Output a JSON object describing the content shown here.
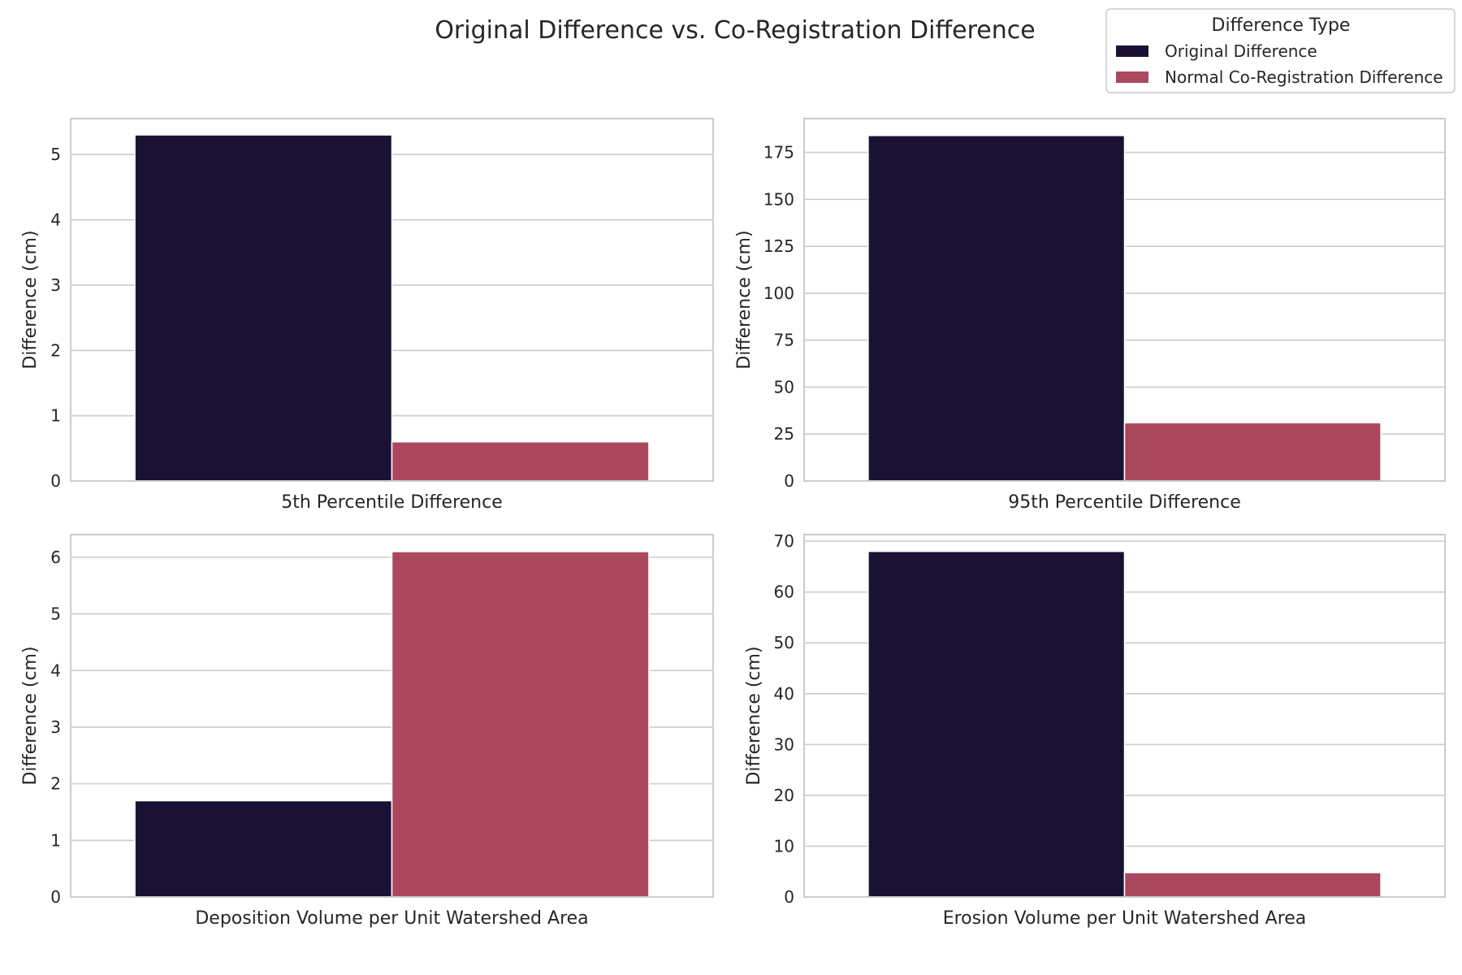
{
  "figure": {
    "title": "Original Difference vs. Co-Registration Difference"
  },
  "legend": {
    "title": "Difference Type",
    "placement": "top-right",
    "entries": [
      {
        "label": "Original Difference",
        "color": "#1a1235"
      },
      {
        "label": "Normal Co-Registration Difference",
        "color": "#ab485e"
      }
    ]
  },
  "colors": {
    "grid": "#cccccc",
    "spine": "#cccccc",
    "text": "#262626",
    "background": "#ffffff"
  },
  "chart_data": [
    {
      "type": "bar",
      "category": "5th Percentile Difference",
      "xlabel": "5th Percentile Difference",
      "ylabel": "Difference (cm)",
      "ylim": [
        0,
        5.55
      ],
      "yticks": [
        0,
        1,
        2,
        3,
        4,
        5
      ],
      "grid": true,
      "series": [
        {
          "name": "Original Difference",
          "values": [
            5.3
          ]
        },
        {
          "name": "Normal Co-Registration Difference",
          "values": [
            0.6
          ]
        }
      ]
    },
    {
      "type": "bar",
      "category": "95th Percentile Difference",
      "xlabel": "95th Percentile Difference",
      "ylabel": "Difference (cm)",
      "ylim": [
        0,
        193
      ],
      "yticks": [
        0,
        25,
        50,
        75,
        100,
        125,
        150,
        175
      ],
      "grid": true,
      "series": [
        {
          "name": "Original Difference",
          "values": [
            184
          ]
        },
        {
          "name": "Normal Co-Registration Difference",
          "values": [
            31
          ]
        }
      ]
    },
    {
      "type": "bar",
      "category": "Deposition Volume per Unit Watershed Area",
      "xlabel": "Deposition Volume per Unit Watershed Area",
      "ylabel": "Difference (cm)",
      "ylim": [
        0,
        6.4
      ],
      "yticks": [
        0,
        1,
        2,
        3,
        4,
        5,
        6
      ],
      "grid": true,
      "series": [
        {
          "name": "Original Difference",
          "values": [
            1.7
          ]
        },
        {
          "name": "Normal Co-Registration Difference",
          "values": [
            6.1
          ]
        }
      ]
    },
    {
      "type": "bar",
      "category": "Erosion Volume per Unit Watershed Area",
      "xlabel": "Erosion Volume per Unit Watershed Area",
      "ylabel": "Difference (cm)",
      "ylim": [
        0,
        71.3
      ],
      "yticks": [
        0,
        10,
        20,
        30,
        40,
        50,
        60,
        70
      ],
      "grid": true,
      "series": [
        {
          "name": "Original Difference",
          "values": [
            68
          ]
        },
        {
          "name": "Normal Co-Registration Difference",
          "values": [
            4.8
          ]
        }
      ]
    }
  ]
}
